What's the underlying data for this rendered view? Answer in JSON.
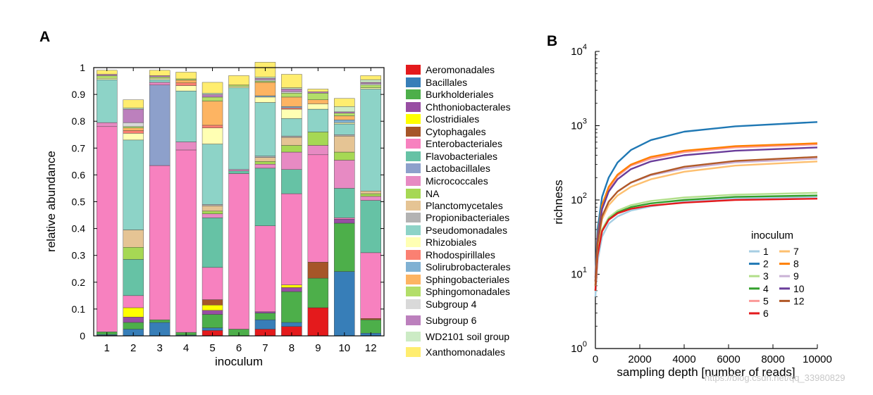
{
  "panel_a_label": "A",
  "panel_b_label": "B",
  "watermark": "https://blog.csdn.net/qq_33980829",
  "chart_data": [
    {
      "type": "bar",
      "stacked": true,
      "title": "",
      "xlabel": "inoculum",
      "ylabel": "relative abundance",
      "ylim": [
        0,
        1
      ],
      "yticks": [
        "0",
        "0.1",
        "0.2",
        "0.3",
        "0.4",
        "0.5",
        "0.6",
        "0.7",
        "0.8",
        "0.9",
        "1"
      ],
      "categories": [
        "1",
        "2",
        "3",
        "4",
        "5",
        "6",
        "7",
        "8",
        "9",
        "10",
        "12"
      ],
      "legend_position": "right",
      "series": [
        {
          "name": "Aeromonadales",
          "color": "#e41a1c",
          "values": [
            0.002,
            0,
            0,
            0,
            0.02,
            0,
            0.025,
            0.035,
            0.105,
            0,
            0
          ]
        },
        {
          "name": "Bacillales",
          "color": "#377eb8",
          "values": [
            0.003,
            0.025,
            0.05,
            0.003,
            0.01,
            0,
            0.035,
            0.015,
            0,
            0.24,
            0.01
          ]
        },
        {
          "name": "Burkholderiales",
          "color": "#4daf4a",
          "values": [
            0.01,
            0.025,
            0.01,
            0.01,
            0.05,
            0.025,
            0.025,
            0.115,
            0.11,
            0.18,
            0.05
          ]
        },
        {
          "name": "Chthoniobacterales",
          "color": "#984ea3",
          "values": [
            0,
            0.02,
            0,
            0,
            0.015,
            0,
            0.005,
            0.015,
            0,
            0.015,
            0
          ]
        },
        {
          "name": "Clostridiales",
          "color": "#ffff00",
          "values": [
            0,
            0.035,
            0,
            0,
            0.02,
            0,
            0,
            0.01,
            0,
            0,
            0
          ]
        },
        {
          "name": "Cytophagales",
          "color": "#a65628",
          "values": [
            0,
            0,
            0,
            0,
            0.02,
            0,
            0,
            0,
            0.06,
            0,
            0.005
          ]
        },
        {
          "name": "Enterobacteriales",
          "color": "#f781bf",
          "values": [
            0.765,
            0.045,
            0.575,
            0.68,
            0.12,
            0.58,
            0.32,
            0.34,
            0.4,
            0.005,
            0.245
          ]
        },
        {
          "name": "Flavobacteriales",
          "color": "#66c2a5",
          "values": [
            0,
            0.135,
            0,
            0,
            0.185,
            0.01,
            0.215,
            0.09,
            0,
            0.11,
            0.195
          ]
        },
        {
          "name": "Lactobacillales",
          "color": "#8da0cb",
          "values": [
            0,
            0,
            0.3,
            0,
            0,
            0,
            0,
            0,
            0,
            0,
            0
          ]
        },
        {
          "name": "Micrococcales",
          "color": "#e78ac3",
          "values": [
            0.015,
            0,
            0.01,
            0.03,
            0.015,
            0.005,
            0.015,
            0.065,
            0.035,
            0.105,
            0.015
          ]
        },
        {
          "name": "NA",
          "color": "#a6d854",
          "values": [
            0,
            0.045,
            0,
            0,
            0.01,
            0,
            0.01,
            0.025,
            0.05,
            0.03,
            0.01
          ]
        },
        {
          "name": "Planctomycetales",
          "color": "#e5c494",
          "values": [
            0,
            0.065,
            0,
            0,
            0.02,
            0,
            0.015,
            0.03,
            0,
            0.06,
            0.01
          ]
        },
        {
          "name": "Propionibacteriales",
          "color": "#b3b3b3",
          "values": [
            0,
            0,
            0,
            0,
            0.005,
            0,
            0.005,
            0.005,
            0,
            0.005,
            0
          ]
        },
        {
          "name": "Pseudomonadales",
          "color": "#8dd3c7",
          "values": [
            0.16,
            0.335,
            0.01,
            0.19,
            0.225,
            0.305,
            0.2,
            0.065,
            0.085,
            0.04,
            0.38
          ]
        },
        {
          "name": "Rhizobiales",
          "color": "#ffffb3",
          "values": [
            0.005,
            0.025,
            0.005,
            0.02,
            0.06,
            0.005,
            0.02,
            0.035,
            0.02,
            0.005,
            0.005
          ]
        },
        {
          "name": "Rhodospirillales",
          "color": "#fb8072",
          "values": [
            0,
            0.01,
            0,
            0.01,
            0.01,
            0,
            0,
            0.005,
            0,
            0,
            0
          ]
        },
        {
          "name": "Solirubrobacterales",
          "color": "#80b1d3",
          "values": [
            0,
            0,
            0,
            0,
            0,
            0,
            0.005,
            0.005,
            0,
            0.01,
            0
          ]
        },
        {
          "name": "Sphingobacteriales",
          "color": "#fdb462",
          "values": [
            0,
            0.01,
            0,
            0.01,
            0.09,
            0,
            0.05,
            0.035,
            0.015,
            0.015,
            0
          ]
        },
        {
          "name": "Sphingomonadales",
          "color": "#b3de69",
          "values": [
            0.01,
            0.005,
            0.005,
            0.005,
            0.015,
            0.005,
            0.005,
            0.015,
            0.025,
            0.01,
            0.01
          ]
        },
        {
          "name": "Subgroup 4",
          "color": "#d9d9d9",
          "values": [
            0,
            0.015,
            0,
            0,
            0,
            0,
            0.005,
            0.005,
            0,
            0,
            0.005
          ]
        },
        {
          "name": "Subgroup 6",
          "color": "#bc80bd",
          "values": [
            0.005,
            0.05,
            0.005,
            0,
            0.01,
            0,
            0.005,
            0.01,
            0.005,
            0.005,
            0.005
          ]
        },
        {
          "name": "WD2101 soil group",
          "color": "#ccebc5",
          "values": [
            0,
            0.005,
            0,
            0,
            0.005,
            0,
            0.005,
            0.005,
            0,
            0.02,
            0.01
          ]
        },
        {
          "name": "Xanthomonadales",
          "color": "#ffed6f",
          "values": [
            0.015,
            0.03,
            0.02,
            0.025,
            0.04,
            0.035,
            0.055,
            0.05,
            0.01,
            0.03,
            0.015
          ]
        }
      ]
    },
    {
      "type": "line",
      "title": "",
      "xlabel": "sampling depth [number of reads]",
      "ylabel": "richness",
      "xlim": [
        0,
        10000
      ],
      "ylim": [
        1,
        10000
      ],
      "yscale": "log",
      "xticks": [
        0,
        2000,
        4000,
        6000,
        8000,
        10000
      ],
      "xtick_labels": [
        "0",
        "2000",
        "4000",
        "6000",
        "8000",
        "10000"
      ],
      "ytick_labels": [
        {
          "base": "10",
          "exp": "0"
        },
        {
          "base": "10",
          "exp": "1"
        },
        {
          "base": "10",
          "exp": "2"
        },
        {
          "base": "10",
          "exp": "3"
        },
        {
          "base": "10",
          "exp": "4"
        }
      ],
      "legend_title": "inoculum",
      "legend_position": "bottom-right",
      "x": [
        0,
        100,
        300,
        600,
        1000,
        1600,
        2500,
        4000,
        6300,
        10000
      ],
      "series": [
        {
          "name": "1",
          "color": "#a6cee3",
          "values": [
            5,
            15,
            32,
            48,
            60,
            72,
            82,
            95,
            105,
            110
          ]
        },
        {
          "name": "2",
          "color": "#1f78b4",
          "values": [
            9,
            40,
            110,
            200,
            320,
            470,
            640,
            830,
            980,
            1120
          ]
        },
        {
          "name": "3",
          "color": "#b2df8a",
          "values": [
            6,
            20,
            40,
            58,
            72,
            85,
            97,
            108,
            118,
            125
          ]
        },
        {
          "name": "4",
          "color": "#33a02c",
          "values": [
            6,
            19,
            38,
            55,
            68,
            80,
            90,
            100,
            110,
            115
          ]
        },
        {
          "name": "5",
          "color": "#fb9a99",
          "values": [
            8,
            30,
            80,
            140,
            210,
            290,
            360,
            440,
            510,
            560
          ]
        },
        {
          "name": "6",
          "color": "#e31a1c",
          "values": [
            6,
            18,
            38,
            54,
            66,
            76,
            84,
            92,
            100,
            104
          ]
        },
        {
          "name": "7",
          "color": "#fdbf6f",
          "values": [
            7,
            24,
            55,
            85,
            115,
            150,
            190,
            240,
            290,
            330
          ]
        },
        {
          "name": "8",
          "color": "#ff7f00",
          "values": [
            8,
            32,
            85,
            150,
            220,
            300,
            380,
            460,
            530,
            580
          ]
        },
        {
          "name": "9",
          "color": "#cab2d6",
          "values": [
            7,
            26,
            60,
            95,
            130,
            170,
            215,
            265,
            320,
            360
          ]
        },
        {
          "name": "10",
          "color": "#6a3d9a",
          "values": [
            8,
            30,
            75,
            130,
            190,
            260,
            330,
            400,
            460,
            510
          ]
        },
        {
          "name": "12",
          "color": "#b15928",
          "values": [
            7,
            26,
            60,
            95,
            130,
            172,
            220,
            280,
            335,
            380
          ]
        }
      ]
    }
  ]
}
